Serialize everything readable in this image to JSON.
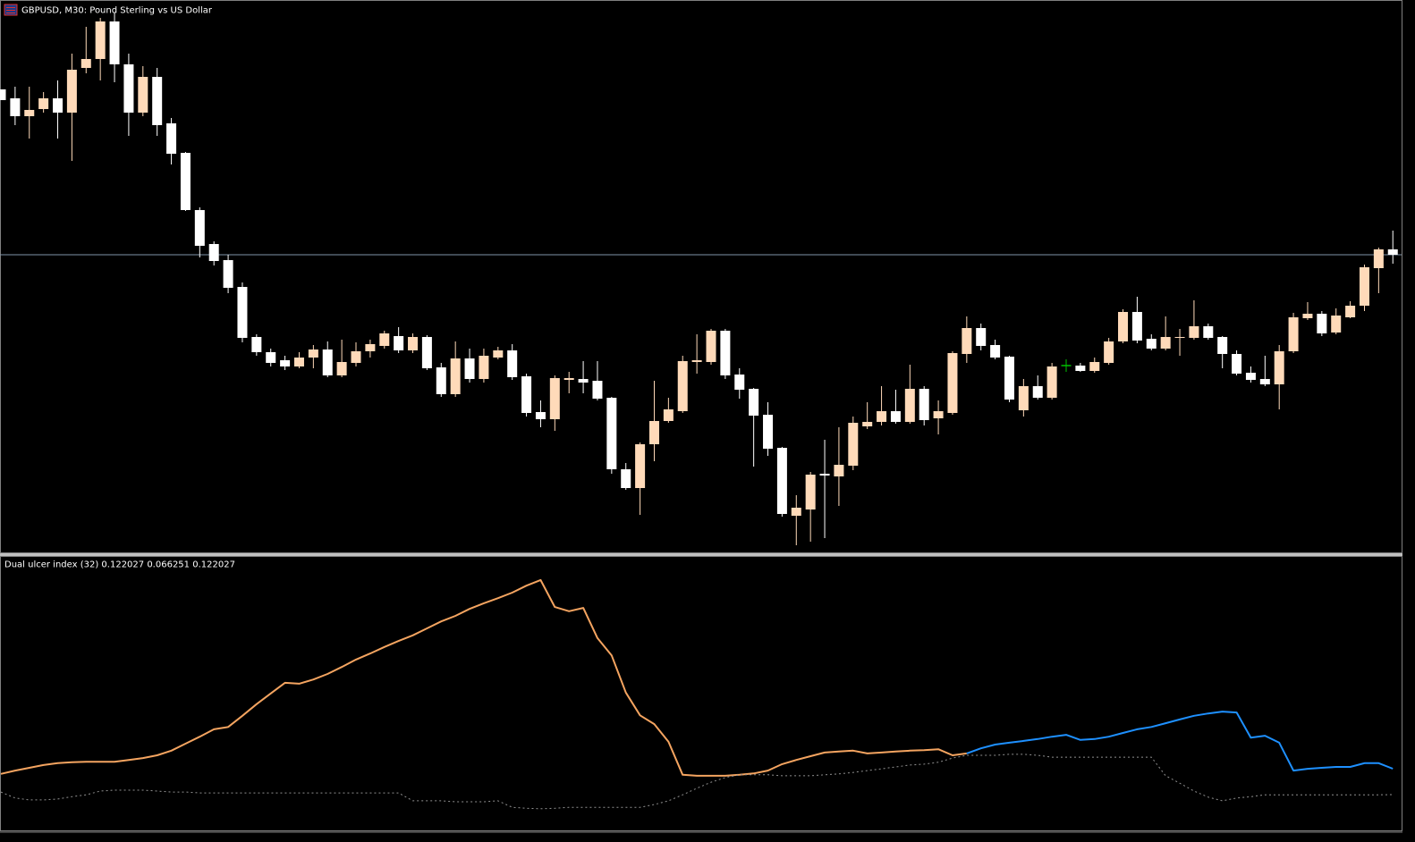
{
  "chart_data": [
    {
      "type": "candlestick",
      "title": "GBPUSD, M30:  Pound Sterling vs US Dollar",
      "up_color": "#ffdab9",
      "down_color": "#ffffff",
      "doji_color": "#00c000",
      "price_line_color": "#7f95a8",
      "ylim": [
        0,
        600
      ],
      "ohlc": [
        [
          518,
          518,
          506,
          506
        ],
        [
          508,
          521,
          478,
          488
        ],
        [
          488,
          521,
          463,
          495
        ],
        [
          496,
          515,
          492,
          508
        ],
        [
          508,
          528,
          463,
          492
        ],
        [
          492,
          558,
          438,
          540
        ],
        [
          542,
          588,
          536,
          552
        ],
        [
          552,
          598,
          528,
          594
        ],
        [
          594,
          604,
          526,
          546
        ],
        [
          546,
          558,
          466,
          492
        ],
        [
          492,
          544,
          488,
          532
        ],
        [
          532,
          542,
          466,
          478
        ],
        [
          480,
          486,
          434,
          446
        ],
        [
          447,
          448,
          382,
          383
        ],
        [
          383,
          386,
          330,
          343
        ],
        [
          345,
          348,
          321,
          326
        ],
        [
          327,
          333,
          290,
          296
        ],
        [
          297,
          302,
          235,
          240
        ],
        [
          241,
          244,
          220,
          224
        ],
        [
          224,
          228,
          208,
          212
        ],
        [
          215,
          220,
          204,
          208
        ],
        [
          208,
          224,
          206,
          218
        ],
        [
          218,
          232,
          206,
          227
        ],
        [
          227,
          236,
          196,
          198
        ],
        [
          198,
          238,
          196,
          213
        ],
        [
          212,
          235,
          208,
          225
        ],
        [
          225,
          238,
          218,
          233
        ],
        [
          231,
          248,
          228,
          245
        ],
        [
          242,
          252,
          223,
          226
        ],
        [
          226,
          245,
          223,
          241
        ],
        [
          241,
          243,
          204,
          206
        ],
        [
          207,
          212,
          174,
          177
        ],
        [
          177,
          236,
          174,
          217
        ],
        [
          217,
          228,
          190,
          194
        ],
        [
          194,
          228,
          190,
          220
        ],
        [
          218,
          230,
          216,
          226
        ],
        [
          226,
          233,
          193,
          196
        ],
        [
          197,
          200,
          152,
          156
        ],
        [
          157,
          170,
          140,
          149
        ],
        [
          149,
          198,
          136,
          195
        ],
        [
          193,
          202,
          178,
          195
        ],
        [
          194,
          214,
          178,
          190
        ],
        [
          192,
          214,
          170,
          172
        ],
        [
          173,
          174,
          88,
          93
        ],
        [
          93,
          100,
          70,
          72
        ],
        [
          72,
          123,
          42,
          121
        ],
        [
          121,
          192,
          102,
          147
        ],
        [
          147,
          173,
          145,
          160
        ],
        [
          158,
          220,
          156,
          214
        ],
        [
          213,
          244,
          200,
          215
        ],
        [
          213,
          250,
          210,
          248
        ],
        [
          248,
          250,
          194,
          198
        ],
        [
          199,
          206,
          172,
          182
        ],
        [
          183,
          184,
          96,
          153
        ],
        [
          154,
          168,
          108,
          116
        ],
        [
          117,
          118,
          40,
          43
        ],
        [
          41,
          64,
          8,
          50
        ],
        [
          48,
          90,
          12,
          87
        ],
        [
          88,
          126,
          16,
          86
        ],
        [
          85,
          140,
          52,
          98
        ],
        [
          97,
          152,
          92,
          145
        ],
        [
          141,
          168,
          138,
          146
        ],
        [
          146,
          186,
          142,
          158
        ],
        [
          158,
          182,
          144,
          146
        ],
        [
          146,
          210,
          144,
          183
        ],
        [
          183,
          186,
          142,
          148
        ],
        [
          150,
          170,
          132,
          158
        ],
        [
          156,
          225,
          154,
          223
        ],
        [
          222,
          264,
          212,
          251
        ],
        [
          251,
          256,
          226,
          231
        ],
        [
          232,
          238,
          216,
          218
        ],
        [
          219,
          220,
          168,
          171
        ],
        [
          159,
          194,
          152,
          186
        ],
        [
          186,
          198,
          171,
          173
        ],
        [
          173,
          212,
          171,
          208
        ],
        [
          209,
          216,
          202,
          209
        ],
        [
          209,
          212,
          202,
          203
        ],
        [
          203,
          218,
          201,
          213
        ],
        [
          212,
          240,
          210,
          236
        ],
        [
          236,
          272,
          234,
          269
        ],
        [
          269,
          286,
          234,
          237
        ],
        [
          239,
          244,
          226,
          228
        ],
        [
          228,
          264,
          226,
          241
        ],
        [
          240,
          250,
          220,
          241
        ],
        [
          240,
          282,
          238,
          253
        ],
        [
          253,
          256,
          238,
          240
        ],
        [
          241,
          242,
          206,
          222
        ],
        [
          222,
          226,
          198,
          200
        ],
        [
          201,
          208,
          190,
          193
        ],
        [
          194,
          220,
          186,
          188
        ],
        [
          188,
          232,
          160,
          225
        ],
        [
          225,
          268,
          223,
          263
        ],
        [
          262,
          280,
          260,
          267
        ],
        [
          267,
          270,
          242,
          245
        ],
        [
          246,
          273,
          244,
          265
        ],
        [
          263,
          281,
          262,
          276
        ],
        [
          276,
          322,
          270,
          319
        ],
        [
          318,
          341,
          290,
          339
        ],
        [
          339,
          360,
          323,
          333
        ]
      ]
    },
    {
      "type": "line",
      "title": "Dual ulcer index (32) 0.122027 0.066251 0.122027",
      "ylim": [
        0,
        0.55
      ],
      "series": [
        {
          "color": "#f4a460",
          "dashed": false,
          "values": [
            0.111,
            0.118,
            0.124,
            0.13,
            0.134,
            0.136,
            0.137,
            0.137,
            0.137,
            0.141,
            0.145,
            0.151,
            0.161,
            0.176,
            0.191,
            0.207,
            0.212,
            0.236,
            0.261,
            0.284,
            0.307,
            0.305,
            0.314,
            0.326,
            0.341,
            0.357,
            0.37,
            0.384,
            0.397,
            0.409,
            0.424,
            0.439,
            0.451,
            0.466,
            0.478,
            0.489,
            0.501,
            0.516,
            0.528,
            0.47,
            0.461,
            0.468,
            0.403,
            0.366,
            0.286,
            0.237,
            0.218,
            0.18,
            0.109,
            0.107,
            0.107,
            0.107,
            0.109,
            0.112,
            0.118,
            0.132,
            0.141,
            0.149,
            0.157,
            0.159,
            0.161,
            0.155,
            0.157,
            0.159,
            0.161,
            0.162,
            0.164,
            0.151,
            0.155,
            null,
            null,
            null,
            null,
            null,
            null,
            null,
            null,
            null,
            null,
            null,
            null,
            null,
            null,
            null,
            null,
            null,
            null,
            null,
            null,
            null,
            null,
            null,
            null,
            null,
            null,
            null,
            null,
            null,
            null
          ]
        },
        {
          "color": "#1e90ff",
          "dashed": false,
          "values": [
            null,
            null,
            null,
            null,
            null,
            null,
            null,
            null,
            null,
            null,
            null,
            null,
            null,
            null,
            null,
            null,
            null,
            null,
            null,
            null,
            null,
            null,
            null,
            null,
            null,
            null,
            null,
            null,
            null,
            null,
            null,
            null,
            null,
            null,
            null,
            null,
            null,
            null,
            null,
            null,
            null,
            null,
            null,
            null,
            null,
            null,
            null,
            null,
            null,
            null,
            null,
            null,
            null,
            null,
            null,
            null,
            null,
            null,
            null,
            null,
            null,
            null,
            null,
            null,
            null,
            null,
            null,
            null,
            0.155,
            0.166,
            0.174,
            0.178,
            0.182,
            0.186,
            0.191,
            0.195,
            0.184,
            0.186,
            0.191,
            0.199,
            0.207,
            0.212,
            0.22,
            0.228,
            0.236,
            0.241,
            0.245,
            0.243,
            0.189,
            0.193,
            0.178,
            0.118,
            0.122,
            0.124,
            0.126,
            0.126,
            0.134,
            0.134,
            0.122027
          ]
        },
        {
          "color": "#909090",
          "dashed": true,
          "values": [
            0.072,
            0.059,
            0.055,
            0.055,
            0.057,
            0.062,
            0.066,
            0.074,
            0.076,
            0.076,
            0.076,
            0.074,
            0.072,
            0.072,
            0.07,
            0.07,
            0.07,
            0.07,
            0.07,
            0.07,
            0.07,
            0.07,
            0.07,
            0.07,
            0.07,
            0.07,
            0.07,
            0.07,
            0.07,
            0.053,
            0.053,
            0.053,
            0.051,
            0.051,
            0.051,
            0.053,
            0.039,
            0.037,
            0.036,
            0.037,
            0.039,
            0.039,
            0.039,
            0.039,
            0.039,
            0.039,
            0.045,
            0.053,
            0.066,
            0.08,
            0.093,
            0.103,
            0.109,
            0.109,
            0.109,
            0.107,
            0.107,
            0.107,
            0.109,
            0.111,
            0.114,
            0.118,
            0.122,
            0.126,
            0.13,
            0.132,
            0.136,
            0.145,
            0.151,
            0.151,
            0.151,
            0.153,
            0.153,
            0.151,
            0.147,
            0.147,
            0.147,
            0.147,
            0.147,
            0.147,
            0.147,
            0.147,
            0.107,
            0.091,
            0.074,
            0.061,
            0.053,
            0.059,
            0.062,
            0.066,
            0.066,
            0.066,
            0.066,
            0.066,
            0.066,
            0.066,
            0.066,
            0.066,
            0.066251
          ]
        }
      ]
    }
  ]
}
